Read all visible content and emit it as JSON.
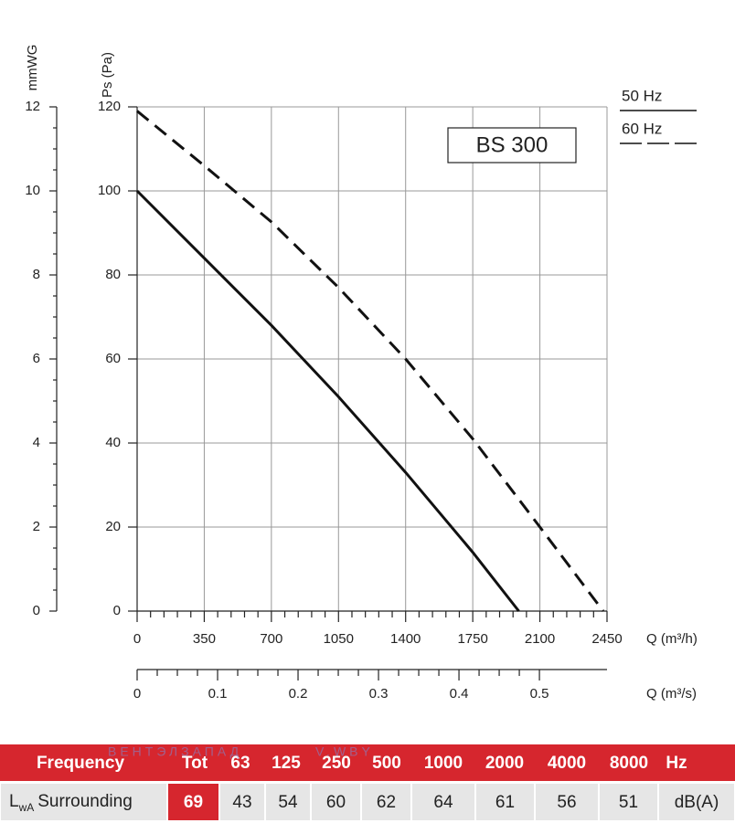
{
  "chart_data": {
    "type": "line",
    "model_label": "BS 300",
    "x_label": "Q (m³/h)",
    "y_label": "Ps (Pa)",
    "xlim": [
      0,
      2450
    ],
    "xticks": [
      0,
      350,
      700,
      1050,
      1400,
      1750,
      2100,
      2450
    ],
    "ylim": [
      0,
      120
    ],
    "yticks": [
      0,
      20,
      40,
      60,
      80,
      100,
      120
    ],
    "x2_label": "Q (m³/s)",
    "x2lim": [
      0,
      0.584
    ],
    "x2ticks": [
      0,
      0.1,
      0.2,
      0.3,
      0.4,
      0.5
    ],
    "y2_label": "mmWG",
    "y2lim": [
      0,
      12
    ],
    "y2ticks": [
      0,
      2,
      4,
      6,
      8,
      10,
      12
    ],
    "grid": true,
    "series": [
      {
        "name": "50 Hz",
        "color": "#111111",
        "style": "solid",
        "x": [
          0,
          350,
          700,
          1050,
          1400,
          1750,
          1990
        ],
        "values": [
          100,
          84,
          68,
          51,
          33,
          14,
          0
        ]
      },
      {
        "name": "60 Hz",
        "color": "#111111",
        "style": "dashed",
        "x": [
          0,
          350,
          700,
          1050,
          1400,
          1750,
          2100,
          2430
        ],
        "values": [
          119,
          106,
          92.6,
          77,
          60,
          41,
          20,
          0
        ]
      }
    ]
  },
  "table": {
    "header": [
      "Frequency",
      "Tot",
      "63",
      "125",
      "250",
      "500",
      "1000",
      "2000",
      "4000",
      "8000",
      "Hz"
    ],
    "row_label": {
      "main": "L",
      "sub": "wA",
      "rest": "Surrounding"
    },
    "values": [
      69,
      43,
      54,
      60,
      62,
      64,
      61,
      56,
      51
    ],
    "unit": "dB(A)"
  },
  "watermark": [
    "ВЕНТЭЛЗАПАД",
    "V.WBY"
  ]
}
